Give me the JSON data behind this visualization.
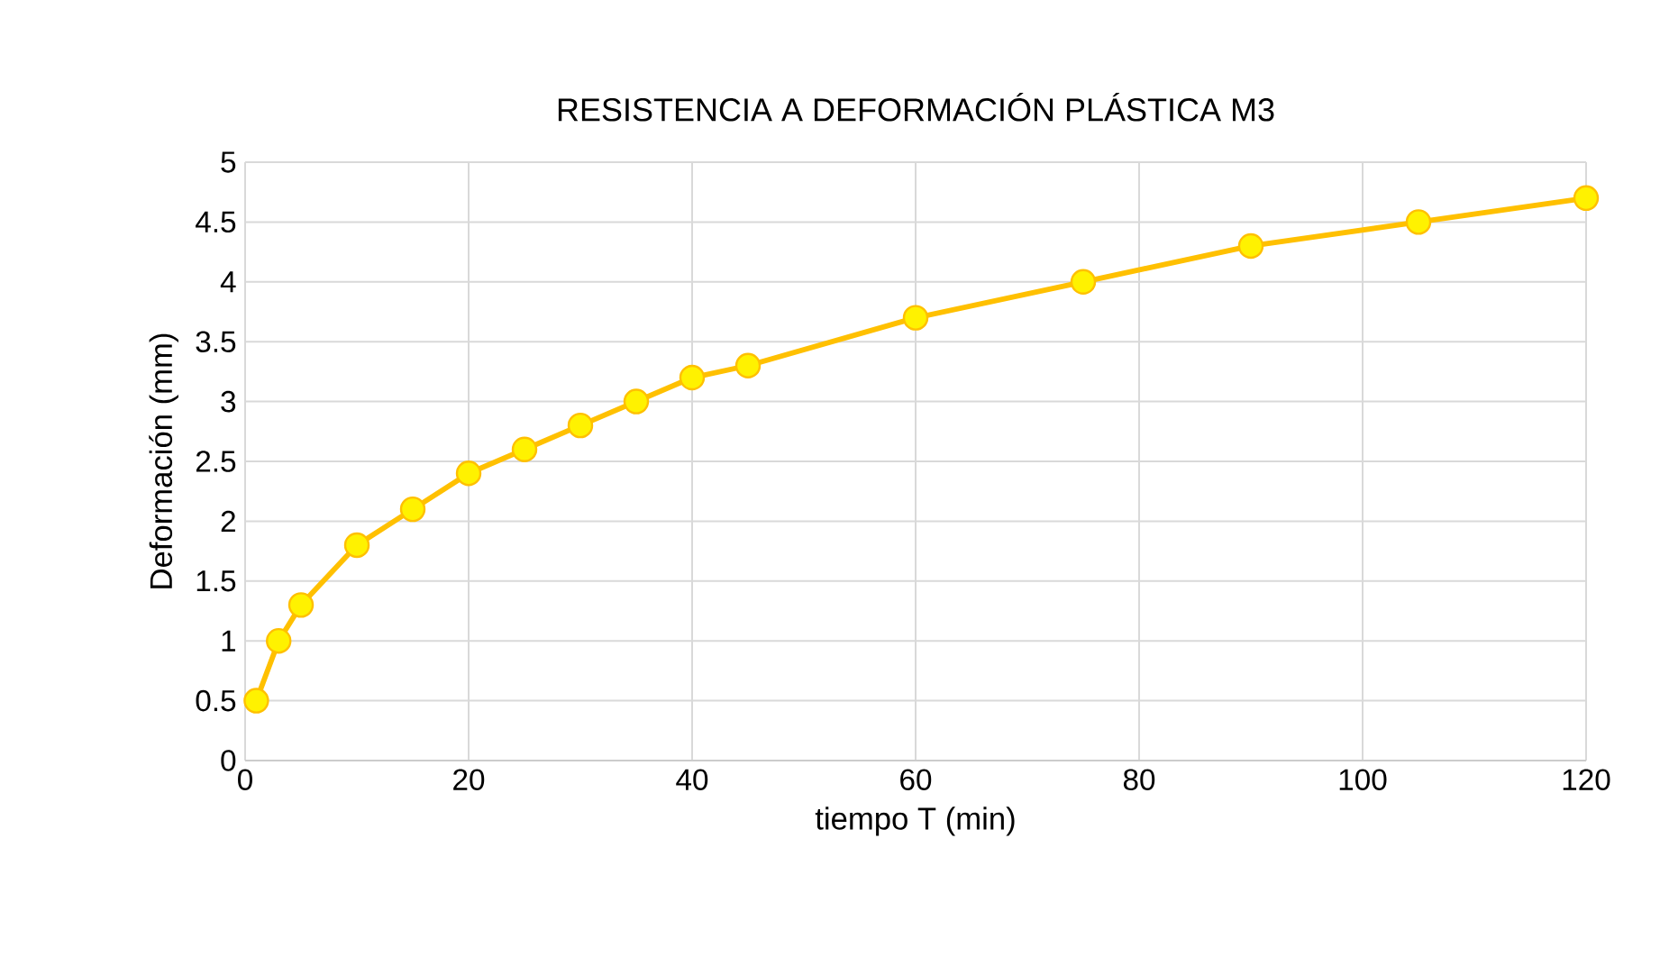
{
  "chart_data": {
    "type": "line",
    "title": "RESISTENCIA A DEFORMACIÓN PLÁSTICA M3",
    "xlabel": "tiempo T (min)",
    "ylabel": "Deformación (mm)",
    "x": [
      1,
      3,
      5,
      10,
      15,
      20,
      25,
      30,
      35,
      40,
      45,
      60,
      75,
      90,
      105,
      120
    ],
    "series": [
      {
        "color": "#ffc000",
        "values": [
          0.5,
          1.0,
          1.3,
          1.8,
          2.1,
          2.4,
          2.6,
          2.8,
          3.0,
          3.2,
          3.3,
          3.7,
          4.0,
          4.3,
          4.5,
          4.7
        ]
      }
    ],
    "xlim": [
      0,
      120
    ],
    "xticks": [
      0,
      20,
      40,
      60,
      80,
      100,
      120
    ],
    "ylim": [
      0,
      5
    ],
    "yticks": [
      0,
      0.5,
      1,
      1.5,
      2,
      2.5,
      3,
      3.5,
      4,
      4.5,
      5
    ],
    "grid": true,
    "marker": "circle",
    "line_style": "solid"
  }
}
